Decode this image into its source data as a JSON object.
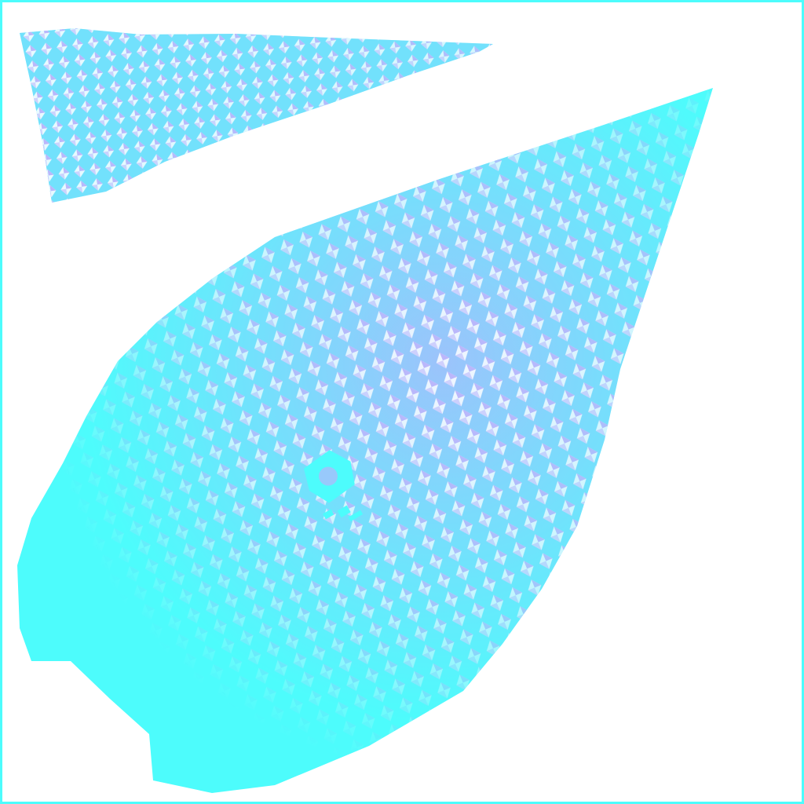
{
  "colors": {
    "background": "#ffffff",
    "frame": "#4dfcfc",
    "cyan": "#4dfcfc",
    "lavender": "#b6b0fb",
    "highlight": "#ffffff",
    "accent": "#b8b4fb"
  },
  "shapes": {
    "top_strip": "textured-strip",
    "main_shape": "textured-shard",
    "emblem": "emblem-icon"
  }
}
